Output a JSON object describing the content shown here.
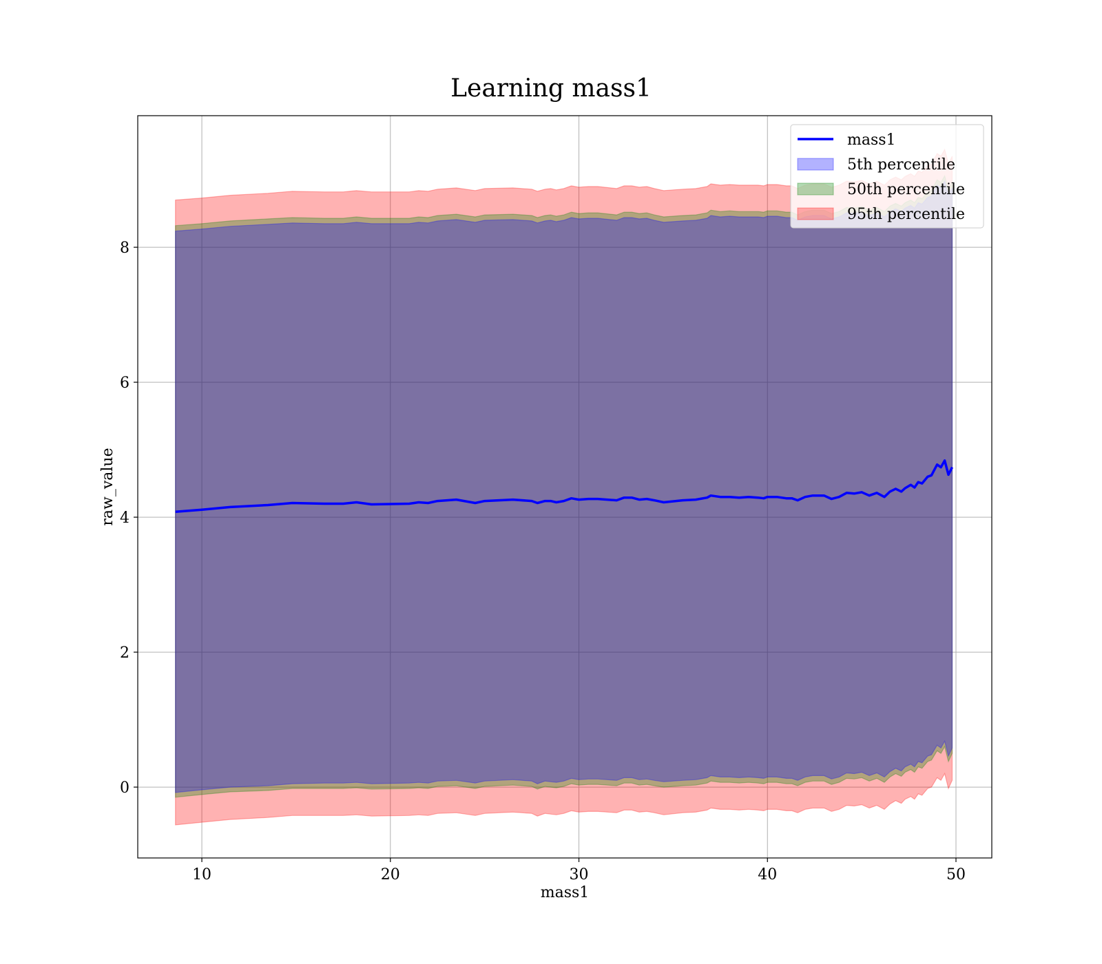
{
  "chart_data": {
    "type": "line",
    "title": "Learning mass1",
    "xlabel": "mass1",
    "ylabel": "raw_value",
    "xlim": [
      6.6,
      51.9
    ],
    "ylim": [
      -1.05,
      9.95
    ],
    "xticks": [
      10,
      20,
      30,
      40,
      50
    ],
    "yticks": [
      0,
      2,
      4,
      6,
      8
    ],
    "grid": true,
    "legend_position": "top-right",
    "colors": {
      "line": "#0000ff",
      "p5": "#0000ff",
      "p50": "#008000",
      "p95": "#ff0000"
    },
    "legend": [
      {
        "label": "mass1",
        "kind": "line",
        "color_key": "line"
      },
      {
        "label": "5th percentile",
        "kind": "patch",
        "color_key": "p5"
      },
      {
        "label": "50th percentile",
        "kind": "patch",
        "color_key": "p50"
      },
      {
        "label": "95th percentile",
        "kind": "patch",
        "color_key": "p95"
      }
    ],
    "x": [
      8.6,
      10.0,
      11.5,
      13.5,
      14.8,
      16.5,
      17.5,
      18.2,
      19.0,
      21.0,
      21.5,
      22.0,
      22.5,
      23.5,
      24.5,
      25.0,
      26.5,
      27.5,
      27.8,
      28.2,
      28.5,
      28.8,
      29.2,
      29.6,
      30.0,
      30.5,
      31.0,
      32.0,
      32.4,
      32.8,
      33.2,
      33.6,
      34.0,
      34.5,
      35.5,
      36.2,
      36.8,
      37.0,
      37.5,
      38.0,
      38.5,
      39.0,
      39.5,
      39.8,
      40.0,
      40.5,
      41.0,
      41.3,
      41.6,
      42.0,
      42.4,
      43.0,
      43.4,
      43.8,
      44.2,
      44.6,
      45.0,
      45.4,
      45.8,
      46.2,
      46.5,
      46.8,
      47.1,
      47.3,
      47.6,
      47.8,
      48.0,
      48.2,
      48.5,
      48.7,
      49.0,
      49.2,
      49.4,
      49.6,
      49.8
    ],
    "series": [
      {
        "name": "mass1",
        "values": [
          4.08,
          4.11,
          4.15,
          4.18,
          4.21,
          4.2,
          4.2,
          4.22,
          4.19,
          4.2,
          4.22,
          4.21,
          4.24,
          4.26,
          4.21,
          4.24,
          4.26,
          4.24,
          4.21,
          4.24,
          4.24,
          4.22,
          4.24,
          4.28,
          4.26,
          4.27,
          4.27,
          4.25,
          4.29,
          4.29,
          4.26,
          4.27,
          4.25,
          4.22,
          4.25,
          4.26,
          4.29,
          4.32,
          4.3,
          4.3,
          4.29,
          4.3,
          4.29,
          4.28,
          4.3,
          4.3,
          4.28,
          4.28,
          4.25,
          4.3,
          4.32,
          4.32,
          4.27,
          4.3,
          4.36,
          4.35,
          4.37,
          4.32,
          4.36,
          4.3,
          4.38,
          4.42,
          4.38,
          4.43,
          4.48,
          4.44,
          4.52,
          4.5,
          4.6,
          4.62,
          4.78,
          4.74,
          4.84,
          4.63,
          4.74
        ]
      }
    ],
    "bands": [
      {
        "name": "5th percentile",
        "lower": [
          -0.08,
          -0.04,
          0.0,
          0.02,
          0.05,
          0.06,
          0.06,
          0.07,
          0.05,
          0.06,
          0.07,
          0.06,
          0.09,
          0.1,
          0.06,
          0.09,
          0.11,
          0.09,
          0.05,
          0.09,
          0.08,
          0.07,
          0.09,
          0.13,
          0.11,
          0.12,
          0.12,
          0.1,
          0.14,
          0.14,
          0.11,
          0.12,
          0.1,
          0.08,
          0.1,
          0.11,
          0.14,
          0.17,
          0.15,
          0.15,
          0.14,
          0.15,
          0.14,
          0.13,
          0.15,
          0.15,
          0.13,
          0.13,
          0.1,
          0.15,
          0.17,
          0.17,
          0.12,
          0.15,
          0.21,
          0.2,
          0.22,
          0.17,
          0.21,
          0.15,
          0.23,
          0.28,
          0.24,
          0.3,
          0.34,
          0.3,
          0.38,
          0.36,
          0.46,
          0.48,
          0.62,
          0.58,
          0.68,
          0.46,
          0.58
        ],
        "upper": [
          8.24,
          8.27,
          8.31,
          8.34,
          8.36,
          8.35,
          8.35,
          8.37,
          8.35,
          8.35,
          8.37,
          8.36,
          8.39,
          8.41,
          8.37,
          8.4,
          8.41,
          8.39,
          8.36,
          8.39,
          8.4,
          8.38,
          8.4,
          8.44,
          8.42,
          8.43,
          8.43,
          8.4,
          8.44,
          8.44,
          8.42,
          8.43,
          8.4,
          8.37,
          8.39,
          8.4,
          8.43,
          8.47,
          8.45,
          8.46,
          8.45,
          8.45,
          8.45,
          8.44,
          8.46,
          8.46,
          8.44,
          8.44,
          8.4,
          8.45,
          8.47,
          8.47,
          8.42,
          8.45,
          8.51,
          8.5,
          8.52,
          8.47,
          8.51,
          8.45,
          8.53,
          8.57,
          8.53,
          8.58,
          8.62,
          8.58,
          8.66,
          8.64,
          8.74,
          8.76,
          8.92,
          8.88,
          8.98,
          8.77,
          8.88
        ]
      },
      {
        "name": "50th percentile",
        "lower": [
          -0.15,
          -0.11,
          -0.07,
          -0.05,
          -0.02,
          -0.02,
          -0.02,
          -0.01,
          -0.03,
          -0.02,
          -0.01,
          -0.02,
          0.01,
          0.02,
          -0.02,
          0.01,
          0.03,
          0.01,
          -0.03,
          0.01,
          0.0,
          -0.01,
          0.01,
          0.05,
          0.03,
          0.04,
          0.04,
          0.02,
          0.06,
          0.06,
          0.03,
          0.04,
          0.02,
          0.0,
          0.02,
          0.03,
          0.06,
          0.09,
          0.07,
          0.07,
          0.06,
          0.07,
          0.06,
          0.05,
          0.07,
          0.07,
          0.05,
          0.05,
          0.02,
          0.07,
          0.09,
          0.09,
          0.04,
          0.07,
          0.13,
          0.12,
          0.14,
          0.09,
          0.13,
          0.07,
          0.15,
          0.2,
          0.16,
          0.22,
          0.26,
          0.22,
          0.3,
          0.28,
          0.38,
          0.4,
          0.54,
          0.5,
          0.6,
          0.38,
          0.5
        ],
        "upper": [
          8.32,
          8.35,
          8.39,
          8.42,
          8.44,
          8.43,
          8.43,
          8.45,
          8.43,
          8.43,
          8.45,
          8.44,
          8.47,
          8.49,
          8.45,
          8.48,
          8.49,
          8.47,
          8.44,
          8.47,
          8.48,
          8.46,
          8.48,
          8.52,
          8.5,
          8.51,
          8.51,
          8.48,
          8.52,
          8.52,
          8.5,
          8.51,
          8.48,
          8.45,
          8.47,
          8.48,
          8.51,
          8.55,
          8.53,
          8.54,
          8.53,
          8.53,
          8.53,
          8.52,
          8.54,
          8.54,
          8.52,
          8.52,
          8.48,
          8.53,
          8.55,
          8.55,
          8.5,
          8.53,
          8.59,
          8.58,
          8.6,
          8.55,
          8.59,
          8.53,
          8.61,
          8.65,
          8.61,
          8.66,
          8.7,
          8.66,
          8.74,
          8.72,
          8.82,
          8.84,
          9.0,
          8.96,
          9.06,
          8.85,
          8.96
        ]
      },
      {
        "name": "95th percentile",
        "lower": [
          -0.56,
          -0.52,
          -0.48,
          -0.45,
          -0.42,
          -0.42,
          -0.42,
          -0.41,
          -0.43,
          -0.42,
          -0.41,
          -0.42,
          -0.39,
          -0.38,
          -0.42,
          -0.39,
          -0.37,
          -0.39,
          -0.43,
          -0.39,
          -0.4,
          -0.41,
          -0.39,
          -0.35,
          -0.37,
          -0.36,
          -0.36,
          -0.38,
          -0.34,
          -0.34,
          -0.37,
          -0.36,
          -0.38,
          -0.41,
          -0.38,
          -0.37,
          -0.34,
          -0.31,
          -0.33,
          -0.33,
          -0.34,
          -0.33,
          -0.34,
          -0.35,
          -0.33,
          -0.33,
          -0.35,
          -0.35,
          -0.38,
          -0.33,
          -0.31,
          -0.31,
          -0.36,
          -0.33,
          -0.27,
          -0.28,
          -0.26,
          -0.31,
          -0.27,
          -0.33,
          -0.25,
          -0.2,
          -0.24,
          -0.18,
          -0.14,
          -0.18,
          -0.1,
          -0.12,
          -0.02,
          0.0,
          0.14,
          0.1,
          0.2,
          -0.02,
          0.1
        ],
        "upper": [
          8.7,
          8.73,
          8.77,
          8.8,
          8.83,
          8.82,
          8.82,
          8.84,
          8.82,
          8.82,
          8.84,
          8.83,
          8.86,
          8.88,
          8.84,
          8.87,
          8.88,
          8.86,
          8.83,
          8.86,
          8.87,
          8.85,
          8.87,
          8.91,
          8.89,
          8.9,
          8.9,
          8.87,
          8.91,
          8.91,
          8.89,
          8.9,
          8.87,
          8.84,
          8.86,
          8.87,
          8.9,
          8.94,
          8.92,
          8.93,
          8.92,
          8.92,
          8.92,
          8.91,
          8.93,
          8.93,
          8.91,
          8.91,
          8.87,
          8.92,
          8.94,
          8.94,
          8.89,
          8.92,
          8.98,
          8.97,
          8.99,
          8.94,
          8.98,
          8.92,
          9.0,
          9.04,
          9.0,
          9.05,
          9.09,
          9.05,
          9.13,
          9.11,
          9.21,
          9.23,
          9.39,
          9.35,
          9.45,
          9.24,
          9.35
        ]
      }
    ]
  }
}
